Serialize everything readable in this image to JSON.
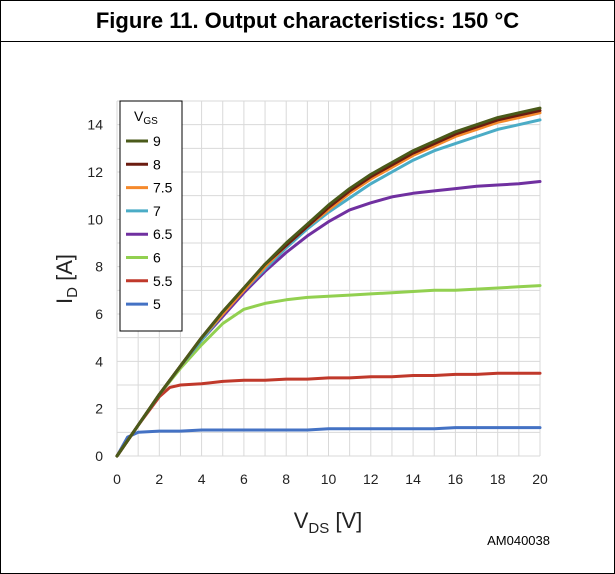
{
  "figure": {
    "title": "Figure 11. Output characteristics: 150 °C",
    "code": "AM040038"
  },
  "chart_data": {
    "type": "line",
    "xlabel_main": "V",
    "xlabel_sub": "DS",
    "xlabel_unit": " [V]",
    "ylabel_main": "I",
    "ylabel_sub": "D",
    "ylabel_unit": " [A]",
    "xlim": [
      0,
      20
    ],
    "ylim": [
      0,
      15
    ],
    "xticks": [
      0,
      2,
      4,
      6,
      8,
      10,
      12,
      14,
      16,
      18,
      20
    ],
    "yticks": [
      0,
      2,
      4,
      6,
      8,
      10,
      12,
      14
    ],
    "grid": true,
    "legend": {
      "title_main": "V",
      "title_sub": "GS",
      "position": "top-left"
    },
    "series": [
      {
        "name": "9",
        "color": "#4a5a1a",
        "points": [
          [
            0,
            0
          ],
          [
            1,
            1.3
          ],
          [
            2,
            2.6
          ],
          [
            3,
            3.8
          ],
          [
            4,
            5.0
          ],
          [
            5,
            6.1
          ],
          [
            6,
            7.1
          ],
          [
            7,
            8.1
          ],
          [
            8,
            9.0
          ],
          [
            9,
            9.8
          ],
          [
            10,
            10.6
          ],
          [
            11,
            11.3
          ],
          [
            12,
            11.9
          ],
          [
            13,
            12.4
          ],
          [
            14,
            12.9
          ],
          [
            15,
            13.3
          ],
          [
            16,
            13.7
          ],
          [
            17,
            14.0
          ],
          [
            18,
            14.3
          ],
          [
            19,
            14.5
          ],
          [
            20,
            14.7
          ]
        ]
      },
      {
        "name": "8",
        "color": "#6b1c10",
        "points": [
          [
            0,
            0
          ],
          [
            1,
            1.3
          ],
          [
            2,
            2.6
          ],
          [
            3,
            3.8
          ],
          [
            4,
            5.0
          ],
          [
            5,
            6.1
          ],
          [
            6,
            7.1
          ],
          [
            7,
            8.1
          ],
          [
            8,
            8.9
          ],
          [
            9,
            9.7
          ],
          [
            10,
            10.5
          ],
          [
            11,
            11.2
          ],
          [
            12,
            11.8
          ],
          [
            13,
            12.3
          ],
          [
            14,
            12.8
          ],
          [
            15,
            13.2
          ],
          [
            16,
            13.6
          ],
          [
            17,
            13.9
          ],
          [
            18,
            14.2
          ],
          [
            19,
            14.4
          ],
          [
            20,
            14.6
          ]
        ]
      },
      {
        "name": "7.5",
        "color": "#f5892b",
        "points": [
          [
            0,
            0
          ],
          [
            1,
            1.3
          ],
          [
            2,
            2.6
          ],
          [
            3,
            3.8
          ],
          [
            4,
            5.0
          ],
          [
            5,
            6.0
          ],
          [
            6,
            7.0
          ],
          [
            7,
            8.0
          ],
          [
            8,
            8.9
          ],
          [
            9,
            9.7
          ],
          [
            10,
            10.4
          ],
          [
            11,
            11.1
          ],
          [
            12,
            11.7
          ],
          [
            13,
            12.2
          ],
          [
            14,
            12.7
          ],
          [
            15,
            13.1
          ],
          [
            16,
            13.5
          ],
          [
            17,
            13.8
          ],
          [
            18,
            14.1
          ],
          [
            19,
            14.3
          ],
          [
            20,
            14.5
          ]
        ]
      },
      {
        "name": "7",
        "color": "#4bacc6",
        "points": [
          [
            0,
            0
          ],
          [
            1,
            1.3
          ],
          [
            2,
            2.6
          ],
          [
            3,
            3.8
          ],
          [
            4,
            4.9
          ],
          [
            5,
            6.0
          ],
          [
            6,
            7.0
          ],
          [
            7,
            7.9
          ],
          [
            8,
            8.8
          ],
          [
            9,
            9.6
          ],
          [
            10,
            10.3
          ],
          [
            11,
            10.9
          ],
          [
            12,
            11.5
          ],
          [
            13,
            12.0
          ],
          [
            14,
            12.5
          ],
          [
            15,
            12.9
          ],
          [
            16,
            13.2
          ],
          [
            17,
            13.5
          ],
          [
            18,
            13.8
          ],
          [
            19,
            14.0
          ],
          [
            20,
            14.2
          ]
        ]
      },
      {
        "name": "6.5",
        "color": "#7030a0",
        "points": [
          [
            0,
            0
          ],
          [
            1,
            1.3
          ],
          [
            2,
            2.6
          ],
          [
            3,
            3.8
          ],
          [
            4,
            4.9
          ],
          [
            5,
            5.9
          ],
          [
            6,
            6.9
          ],
          [
            7,
            7.8
          ],
          [
            8,
            8.6
          ],
          [
            9,
            9.3
          ],
          [
            10,
            9.9
          ],
          [
            11,
            10.4
          ],
          [
            12,
            10.7
          ],
          [
            13,
            10.95
          ],
          [
            14,
            11.1
          ],
          [
            15,
            11.2
          ],
          [
            16,
            11.3
          ],
          [
            17,
            11.4
          ],
          [
            18,
            11.45
          ],
          [
            19,
            11.5
          ],
          [
            20,
            11.6
          ]
        ]
      },
      {
        "name": "6",
        "color": "#92d050",
        "points": [
          [
            0,
            0
          ],
          [
            1,
            1.3
          ],
          [
            2,
            2.6
          ],
          [
            3,
            3.7
          ],
          [
            4,
            4.7
          ],
          [
            5,
            5.6
          ],
          [
            6,
            6.2
          ],
          [
            7,
            6.45
          ],
          [
            8,
            6.6
          ],
          [
            9,
            6.7
          ],
          [
            10,
            6.75
          ],
          [
            11,
            6.8
          ],
          [
            12,
            6.85
          ],
          [
            13,
            6.9
          ],
          [
            14,
            6.95
          ],
          [
            15,
            7.0
          ],
          [
            16,
            7.0
          ],
          [
            17,
            7.05
          ],
          [
            18,
            7.1
          ],
          [
            19,
            7.15
          ],
          [
            20,
            7.2
          ]
        ]
      },
      {
        "name": "5.5",
        "color": "#c0392b",
        "points": [
          [
            0,
            0
          ],
          [
            1,
            1.3
          ],
          [
            2,
            2.5
          ],
          [
            2.5,
            2.9
          ],
          [
            3,
            3.0
          ],
          [
            4,
            3.05
          ],
          [
            5,
            3.15
          ],
          [
            6,
            3.2
          ],
          [
            7,
            3.2
          ],
          [
            8,
            3.25
          ],
          [
            9,
            3.25
          ],
          [
            10,
            3.3
          ],
          [
            11,
            3.3
          ],
          [
            12,
            3.35
          ],
          [
            13,
            3.35
          ],
          [
            14,
            3.4
          ],
          [
            15,
            3.4
          ],
          [
            16,
            3.45
          ],
          [
            17,
            3.45
          ],
          [
            18,
            3.5
          ],
          [
            19,
            3.5
          ],
          [
            20,
            3.5
          ]
        ]
      },
      {
        "name": "5",
        "color": "#4472c4",
        "points": [
          [
            0,
            0
          ],
          [
            0.5,
            0.8
          ],
          [
            1,
            1.0
          ],
          [
            2,
            1.05
          ],
          [
            3,
            1.05
          ],
          [
            4,
            1.1
          ],
          [
            5,
            1.1
          ],
          [
            6,
            1.1
          ],
          [
            7,
            1.1
          ],
          [
            8,
            1.1
          ],
          [
            9,
            1.1
          ],
          [
            10,
            1.15
          ],
          [
            11,
            1.15
          ],
          [
            12,
            1.15
          ],
          [
            13,
            1.15
          ],
          [
            14,
            1.15
          ],
          [
            15,
            1.15
          ],
          [
            16,
            1.2
          ],
          [
            17,
            1.2
          ],
          [
            18,
            1.2
          ],
          [
            19,
            1.2
          ],
          [
            20,
            1.2
          ]
        ]
      }
    ]
  }
}
